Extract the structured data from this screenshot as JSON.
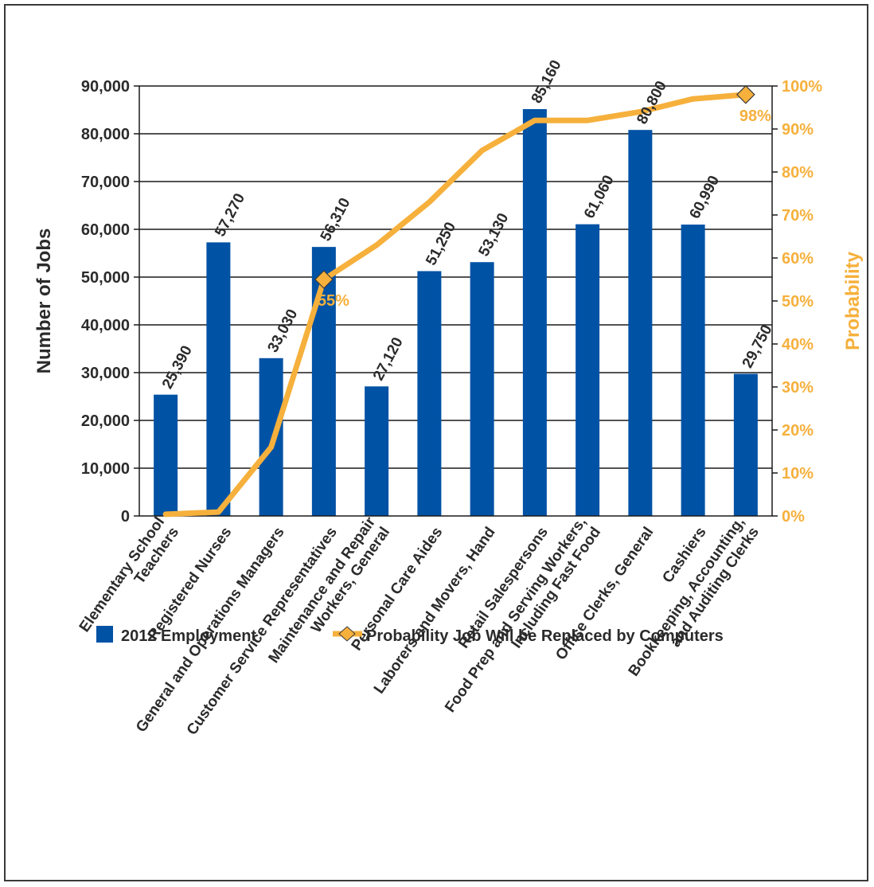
{
  "chart_data": {
    "type": "bar",
    "categories": [
      [
        "Elementary School",
        "Teachers"
      ],
      [
        "Registered Nurses"
      ],
      [
        "General and Operations Managers"
      ],
      [
        "Customer Service Representatives"
      ],
      [
        "Maintenance and Repair",
        "Workers, General"
      ],
      [
        "Personal Care Aides"
      ],
      [
        "Laborers and Movers, Hand"
      ],
      [
        "Retail Salespersons"
      ],
      [
        "Food Prep and Serving Workers,",
        "Including Fast Food"
      ],
      [
        "Office Clerks, General"
      ],
      [
        "Cashiers"
      ],
      [
        "Bookkeeping, Accounting,",
        "and Auditing Clerks"
      ]
    ],
    "series": [
      {
        "name": "2012 Employment",
        "type": "bar",
        "axis": "left",
        "color": "#0052a5",
        "values": [
          25390,
          57270,
          33030,
          56310,
          27120,
          51250,
          53130,
          85160,
          61060,
          80800,
          60990,
          29750
        ],
        "labels": [
          "25,390",
          "57,270",
          "33,030",
          "56,310",
          "27,120",
          "51,250",
          "53,130",
          "85,160",
          "61,060",
          "80,800",
          "60,990",
          "29,750"
        ]
      },
      {
        "name": "Probability Job Will be Replaced by Computers",
        "type": "line",
        "axis": "right",
        "color": "#f6b03c",
        "values": [
          0.4,
          0.9,
          16,
          55,
          63,
          73,
          85,
          92,
          92,
          94,
          97,
          98
        ],
        "marked_points": [
          {
            "index": 3,
            "label": "55%"
          },
          {
            "index": 11,
            "label": "98%"
          }
        ]
      }
    ],
    "ylabel": "Number of Jobs",
    "ylabel_right": "Probability",
    "ylim": [
      0,
      90000
    ],
    "ylim_right": [
      0,
      100
    ],
    "yticks": [
      "0",
      "10,000",
      "20,000",
      "30,000",
      "40,000",
      "50,000",
      "60,000",
      "70,000",
      "80,000",
      "90,000"
    ],
    "yticks_right": [
      "0%",
      "10%",
      "20%",
      "30%",
      "40%",
      "50%",
      "60%",
      "70%",
      "80%",
      "90%",
      "100%"
    ],
    "grid": true,
    "legend_position": "bottom"
  }
}
